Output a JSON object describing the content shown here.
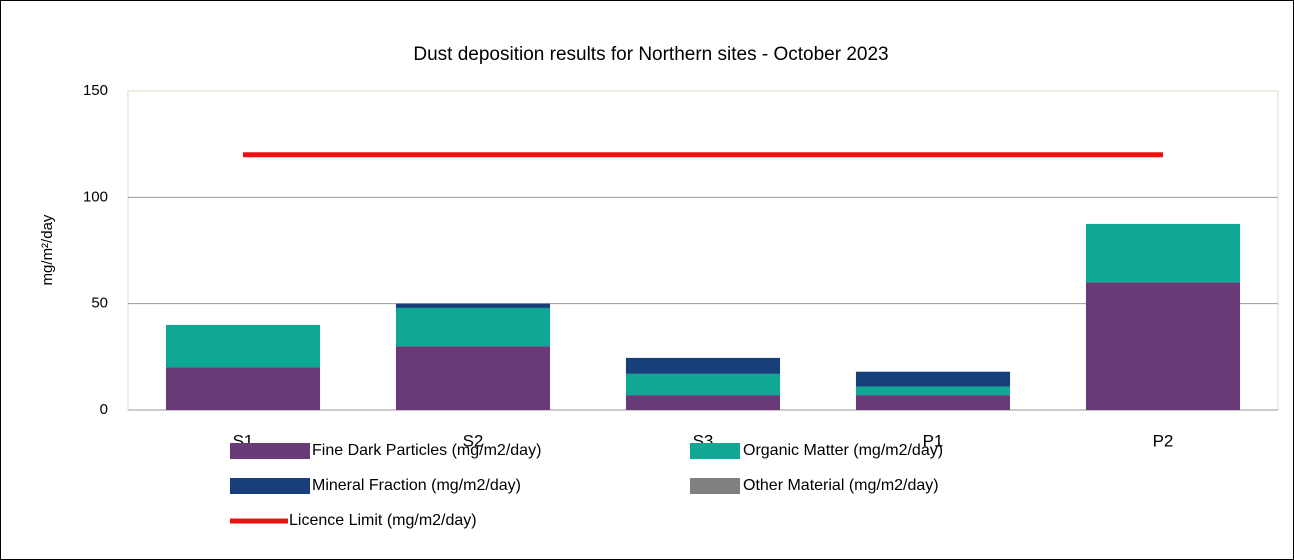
{
  "chart_data": {
    "type": "bar",
    "stacked": true,
    "title": "Dust deposition results for Northern sites - October 2023",
    "y_label": "mg/m²/day",
    "categories": [
      "S1",
      "S2",
      "S3",
      "P1",
      "P2"
    ],
    "series": [
      {
        "name": "Fine Dark Particles (mg/m2/day)",
        "color": "#6a3a78",
        "values": [
          20,
          30,
          7,
          7,
          60
        ]
      },
      {
        "name": "Organic Matter (mg/m2/day)",
        "color": "#0ea895",
        "values": [
          20,
          18,
          10,
          4,
          27.5
        ]
      },
      {
        "name": "Mineral Fraction (mg/m2/day)",
        "color": "#17407a",
        "values": [
          0,
          2,
          7.5,
          7,
          0
        ]
      },
      {
        "name": "Other Material (mg/m2/day)",
        "color": "#808080",
        "values": [
          0,
          0,
          0,
          0,
          0
        ]
      },
      {
        "name": "Licence Limit  (mg/m2/day)",
        "color": "#ee1111",
        "type": "line",
        "values": [
          120,
          120,
          120,
          120,
          120
        ]
      }
    ],
    "ylim": [
      0,
      150
    ],
    "yticks": [
      0,
      50,
      100,
      150
    ],
    "grid": true
  }
}
